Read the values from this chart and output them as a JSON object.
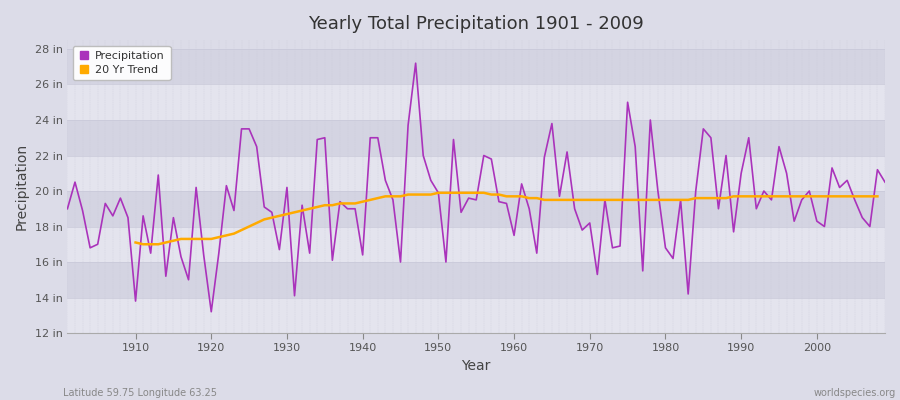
{
  "title": "Yearly Total Precipitation 1901 - 2009",
  "xlabel": "Year",
  "ylabel": "Precipitation",
  "subtitle_left": "Latitude 59.75 Longitude 63.25",
  "subtitle_right": "worldspecies.org",
  "ylim": [
    12,
    28.5
  ],
  "yticks": [
    12,
    14,
    16,
    18,
    20,
    22,
    24,
    26,
    28
  ],
  "ytick_labels": [
    "12 in",
    "14 in",
    "16 in",
    "18 in",
    "20 in",
    "22 in",
    "24 in",
    "26 in",
    "28 in"
  ],
  "xlim": [
    1901,
    2009
  ],
  "xticks": [
    1910,
    1920,
    1930,
    1940,
    1950,
    1960,
    1970,
    1980,
    1990,
    2000
  ],
  "bg_color": "#dcdce8",
  "band_color_light": "#e4e4ee",
  "band_color_dark": "#d4d4e2",
  "precip_color": "#aa33bb",
  "trend_color": "#ffaa00",
  "grid_color": "#c8c8d8",
  "years": [
    1901,
    1902,
    1903,
    1904,
    1905,
    1906,
    1907,
    1908,
    1909,
    1910,
    1911,
    1912,
    1913,
    1914,
    1915,
    1916,
    1917,
    1918,
    1919,
    1920,
    1921,
    1922,
    1923,
    1924,
    1925,
    1926,
    1927,
    1928,
    1929,
    1930,
    1931,
    1932,
    1933,
    1934,
    1935,
    1936,
    1937,
    1938,
    1939,
    1940,
    1941,
    1942,
    1943,
    1944,
    1945,
    1946,
    1947,
    1948,
    1949,
    1950,
    1951,
    1952,
    1953,
    1954,
    1955,
    1956,
    1957,
    1958,
    1959,
    1960,
    1961,
    1962,
    1963,
    1964,
    1965,
    1966,
    1967,
    1968,
    1969,
    1970,
    1971,
    1972,
    1973,
    1974,
    1975,
    1976,
    1977,
    1978,
    1979,
    1980,
    1981,
    1982,
    1983,
    1984,
    1985,
    1986,
    1987,
    1988,
    1989,
    1990,
    1991,
    1992,
    1993,
    1994,
    1995,
    1996,
    1997,
    1998,
    1999,
    2000,
    2001,
    2002,
    2003,
    2004,
    2005,
    2006,
    2007,
    2008,
    2009
  ],
  "precip": [
    19.0,
    20.5,
    18.9,
    16.8,
    17.0,
    19.3,
    18.6,
    19.6,
    18.5,
    13.8,
    18.6,
    16.5,
    20.9,
    15.2,
    18.5,
    16.3,
    15.0,
    20.2,
    16.4,
    13.2,
    16.5,
    20.3,
    18.9,
    23.5,
    23.5,
    22.5,
    19.1,
    18.8,
    16.7,
    20.2,
    14.1,
    19.2,
    16.5,
    22.9,
    23.0,
    16.1,
    19.4,
    19.0,
    19.0,
    16.4,
    23.0,
    23.0,
    20.6,
    19.5,
    16.0,
    23.7,
    27.2,
    22.0,
    20.6,
    19.9,
    16.0,
    22.9,
    18.8,
    19.6,
    19.5,
    22.0,
    21.8,
    19.4,
    19.3,
    17.5,
    20.4,
    19.0,
    16.5,
    21.9,
    23.8,
    19.7,
    22.2,
    19.0,
    17.8,
    18.2,
    15.3,
    19.5,
    16.8,
    16.9,
    25.0,
    22.5,
    15.5,
    24.0,
    20.0,
    16.8,
    16.2,
    19.5,
    14.2,
    20.0,
    23.5,
    23.0,
    19.0,
    22.0,
    17.7,
    21.0,
    23.0,
    19.0,
    20.0,
    19.5,
    22.5,
    21.0,
    18.3,
    19.5,
    20.0,
    18.3,
    18.0,
    21.3,
    20.2,
    20.6,
    19.5,
    18.5,
    18.0,
    21.2,
    20.5
  ],
  "trend": [
    null,
    null,
    null,
    null,
    null,
    null,
    null,
    null,
    null,
    17.1,
    17.0,
    17.0,
    17.0,
    17.1,
    17.2,
    17.3,
    17.3,
    17.3,
    17.3,
    17.3,
    17.4,
    17.5,
    17.6,
    17.8,
    18.0,
    18.2,
    18.4,
    18.5,
    18.6,
    18.7,
    18.8,
    18.9,
    19.0,
    19.1,
    19.2,
    19.2,
    19.3,
    19.3,
    19.3,
    19.4,
    19.5,
    19.6,
    19.7,
    19.7,
    19.7,
    19.8,
    19.8,
    19.8,
    19.8,
    19.9,
    19.9,
    19.9,
    19.9,
    19.9,
    19.9,
    19.9,
    19.8,
    19.8,
    19.7,
    19.7,
    19.7,
    19.6,
    19.6,
    19.5,
    19.5,
    19.5,
    19.5,
    19.5,
    19.5,
    19.5,
    19.5,
    19.5,
    19.5,
    19.5,
    19.5,
    19.5,
    19.5,
    19.5,
    19.5,
    19.5,
    19.5,
    19.5,
    19.5,
    19.6,
    19.6,
    19.6,
    19.6,
    19.6,
    19.7,
    19.7,
    19.7,
    19.7,
    19.7,
    19.7,
    19.7,
    19.7,
    19.7,
    19.7,
    19.7,
    19.7,
    19.7,
    19.7,
    19.7,
    19.7,
    19.7,
    19.7,
    19.7,
    19.7
  ]
}
